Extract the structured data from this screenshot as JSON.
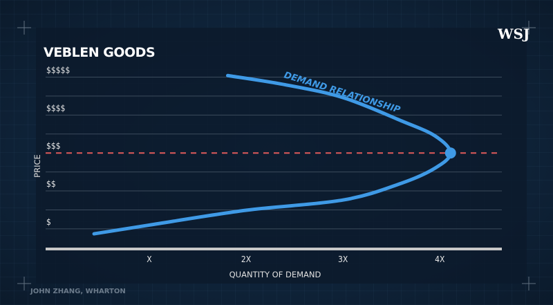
{
  "logo": "WSJ",
  "source": "JOHN ZHANG, WHARTON",
  "chart_data": {
    "type": "line",
    "title": "VEBLEN GOODS",
    "xlabel": "QUANTITY OF DEMAND",
    "ylabel": "PRICE",
    "x_ticks": [
      {
        "value": 1,
        "label": "X"
      },
      {
        "value": 2,
        "label": "2X"
      },
      {
        "value": 3,
        "label": "3X"
      },
      {
        "value": 4,
        "label": "4X"
      }
    ],
    "y_ticks": [
      {
        "value": 1,
        "label": "$"
      },
      {
        "value": 2,
        "label": "$$"
      },
      {
        "value": 3,
        "label": "$$$"
      },
      {
        "value": 4,
        "label": "$$$$"
      },
      {
        "value": 5,
        "label": "$$$$$"
      }
    ],
    "xlim": [
      -0.07,
      4.64
    ],
    "ylim": [
      0.47,
      5.3
    ],
    "reference_line": {
      "price": 3,
      "color": "#e05a5a",
      "style": "dashed"
    },
    "series": [
      {
        "name": "DEMAND RELATIONSHIP",
        "color": "#3f9ae6",
        "points": [
          [
            0.43,
            0.87
          ],
          [
            1.0,
            1.1
          ],
          [
            2.0,
            1.49
          ],
          [
            3.0,
            1.76
          ],
          [
            3.6,
            2.2
          ],
          [
            3.95,
            2.6
          ],
          [
            4.11,
            3.0
          ],
          [
            3.95,
            3.45
          ],
          [
            3.6,
            3.85
          ],
          [
            3.0,
            4.46
          ],
          [
            2.4,
            4.8
          ],
          [
            1.81,
            5.04
          ]
        ]
      }
    ],
    "highlight_point": [
      4.11,
      3.0
    ],
    "grid": true
  }
}
